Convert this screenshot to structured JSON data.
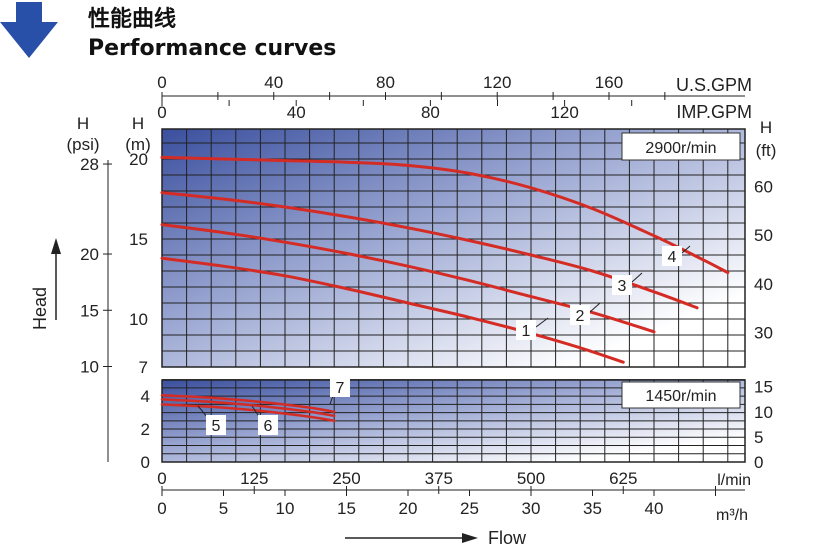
{
  "header": {
    "title_cn": "性能曲线",
    "title_en": "Performance curves"
  },
  "colors": {
    "curve": "#d42b25",
    "grid": "#222222",
    "arrow": "#2850a8",
    "gradient_dark": "#3a4f9e",
    "gradient_light": "#ffffff"
  },
  "chart_data": [
    {
      "type": "line",
      "speed_label": "2900r/min",
      "xlabel": "Flow",
      "ylabel": "Head",
      "x_unit_top_us": "U.S.GPM",
      "x_unit_top_imp": "IMP.GPM",
      "x_unit_lmin": "l/min",
      "x_unit_m3h": "m³/h",
      "y_unit_m": "(m)",
      "y_unit_m_head": "H",
      "y_unit_psi": "(psi)",
      "y_unit_psi_head": "H",
      "y_unit_ft": "(ft)",
      "y_unit_ft_head": "H",
      "ylim_m": [
        7,
        22
      ],
      "xlim_m3h": [
        0,
        47
      ],
      "us_gpm_ticks": [
        "0",
        "40",
        "80",
        "120",
        "160"
      ],
      "imp_gpm_ticks": [
        "0",
        "40",
        "80",
        "120"
      ],
      "psi_ticks": [
        "28",
        "20",
        "15",
        "10"
      ],
      "m_ticks": [
        "20",
        "15",
        "10",
        "7"
      ],
      "ft_ticks": [
        "60",
        "50",
        "40",
        "30"
      ],
      "grid": true,
      "series": [
        {
          "name": "1",
          "x": [
            0,
            5,
            10,
            15,
            20,
            25,
            30,
            34,
            37.5
          ],
          "y": [
            13.8,
            13.3,
            12.7,
            11.9,
            11.0,
            10.1,
            9.1,
            8.2,
            7.3
          ]
        },
        {
          "name": "2",
          "x": [
            0,
            5,
            10,
            15,
            20,
            25,
            30,
            35,
            40
          ],
          "y": [
            15.9,
            15.4,
            14.8,
            14.1,
            13.3,
            12.4,
            11.4,
            10.4,
            9.2
          ]
        },
        {
          "name": "3",
          "x": [
            0,
            5,
            10,
            15,
            20,
            25,
            30,
            35,
            40,
            43.5
          ],
          "y": [
            17.9,
            17.5,
            17.0,
            16.4,
            15.7,
            14.9,
            14.0,
            13.0,
            11.7,
            10.7
          ]
        },
        {
          "name": "4",
          "x": [
            0,
            5,
            10,
            15,
            20,
            25,
            30,
            35,
            40,
            44,
            46
          ],
          "y": [
            20.1,
            20.0,
            19.9,
            19.8,
            19.6,
            19.1,
            18.2,
            16.9,
            15.2,
            13.7,
            12.9
          ]
        }
      ]
    },
    {
      "type": "line",
      "speed_label": "1450r/min",
      "lmin_ticks": [
        "0",
        "125",
        "250",
        "375",
        "500",
        "625"
      ],
      "m3h_ticks": [
        "0",
        "5",
        "10",
        "15",
        "20",
        "25",
        "30",
        "35",
        "40"
      ],
      "m_ticks": [
        "4",
        "2",
        "0"
      ],
      "ft_ticks": [
        "15",
        "10",
        "5",
        "0"
      ],
      "ylim_m": [
        0,
        5
      ],
      "grid": true,
      "series": [
        {
          "name": "5",
          "x": [
            0,
            4,
            8,
            12,
            14
          ],
          "y": [
            3.5,
            3.35,
            3.1,
            2.75,
            2.5
          ]
        },
        {
          "name": "6",
          "x": [
            0,
            4,
            8,
            12,
            14
          ],
          "y": [
            3.8,
            3.65,
            3.4,
            3.05,
            2.8
          ]
        },
        {
          "name": "7",
          "x": [
            0,
            4,
            8,
            12,
            14
          ],
          "y": [
            4.05,
            3.9,
            3.65,
            3.3,
            3.05
          ]
        }
      ]
    }
  ]
}
